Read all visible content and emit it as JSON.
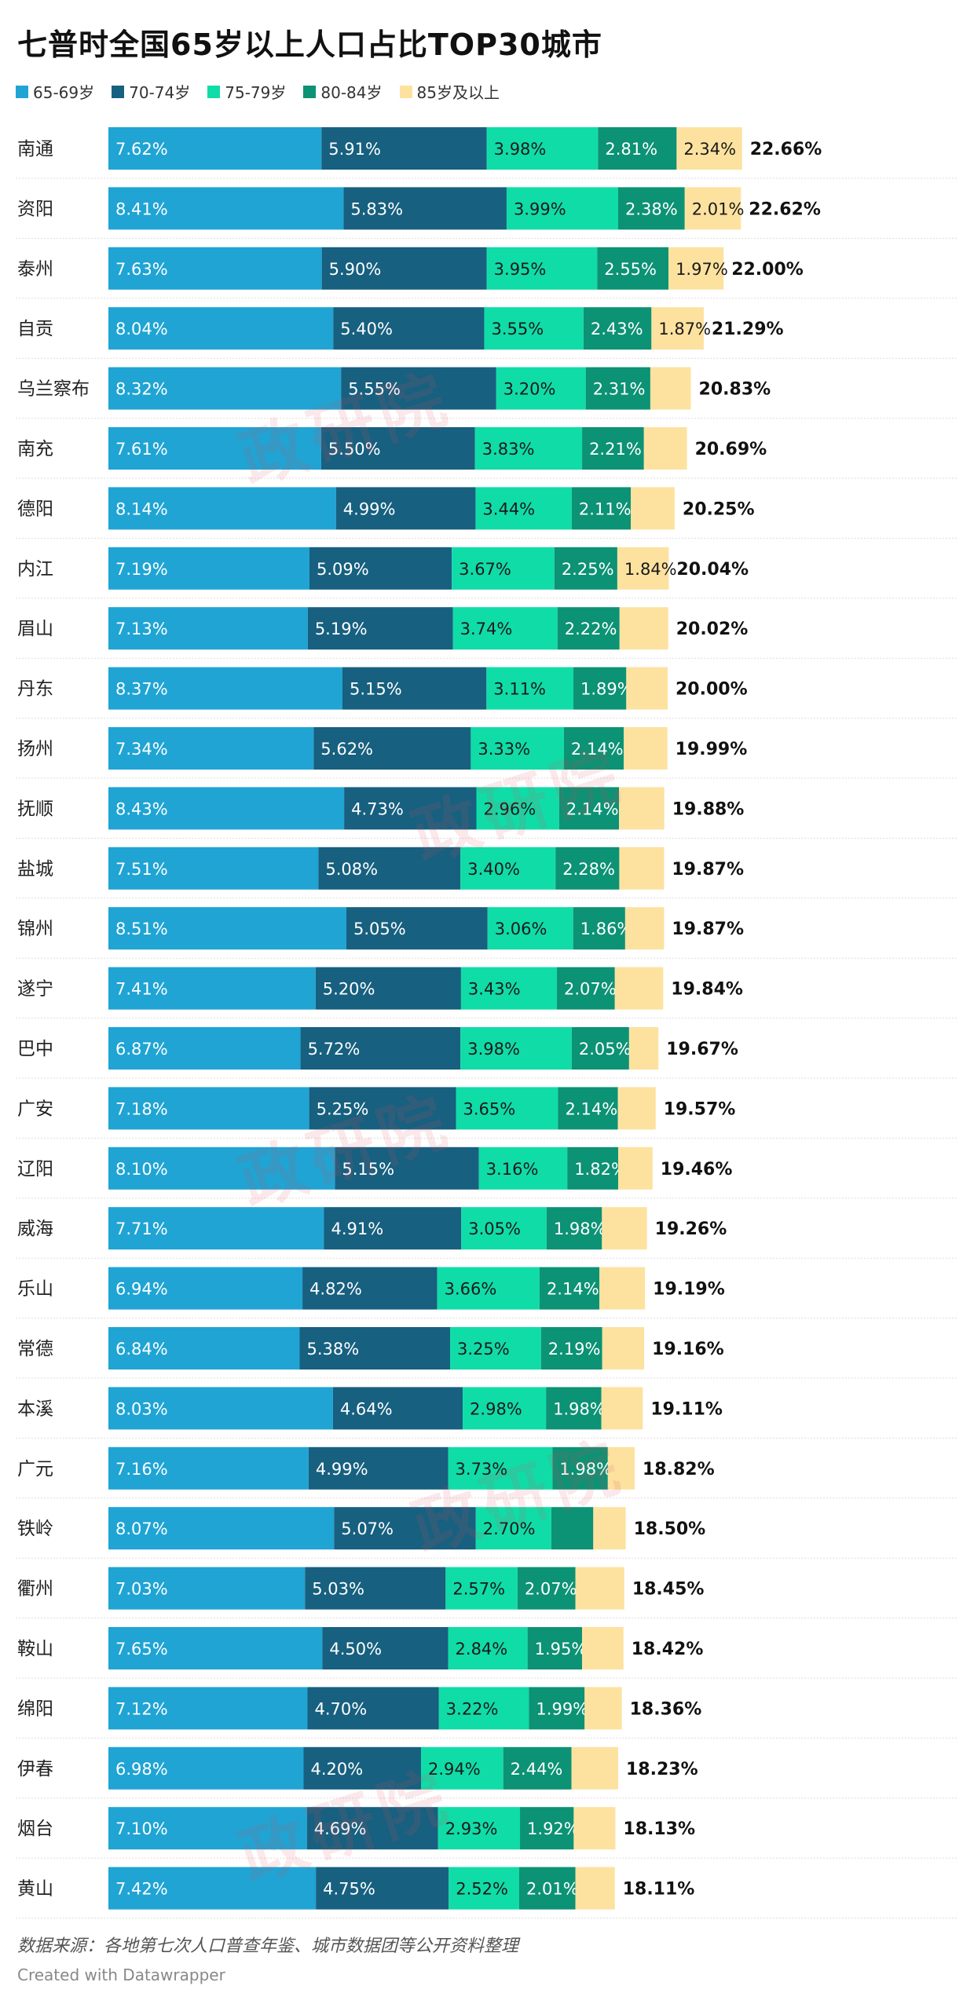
{
  "title": "七普时全国65岁以上人口占比TOP30城市",
  "watermark_text": "政研院",
  "footer": {
    "source": "数据来源：各地第七次人口普查年鉴、城市数据团等公开资料整理",
    "credit": "Created with Datawrapper"
  },
  "colors": {
    "s1": "#1fa4d4",
    "s2": "#17607f",
    "s3": "#10dca8",
    "s4": "#0c9274",
    "s5": "#fde29f"
  },
  "chart_data": {
    "type": "bar",
    "orientation": "horizontal-stacked",
    "title": "七普时全国65岁以上人口占比TOP30城市",
    "categories": [
      "南通",
      "资阳",
      "泰州",
      "自贡",
      "乌兰察布",
      "南充",
      "德阳",
      "内江",
      "眉山",
      "丹东",
      "扬州",
      "抚顺",
      "盐城",
      "锦州",
      "遂宁",
      "巴中",
      "广安",
      "辽阳",
      "威海",
      "乐山",
      "常德",
      "本溪",
      "广元",
      "铁岭",
      "衢州",
      "鞍山",
      "绵阳",
      "伊春",
      "烟台",
      "黄山"
    ],
    "series": [
      {
        "name": "65-69岁",
        "values": [
          7.62,
          8.41,
          7.63,
          8.04,
          8.32,
          7.61,
          8.14,
          7.19,
          7.13,
          8.37,
          7.34,
          8.43,
          7.51,
          8.51,
          7.41,
          6.87,
          7.18,
          8.1,
          7.71,
          6.94,
          6.84,
          8.03,
          7.16,
          8.07,
          7.03,
          7.65,
          7.12,
          6.98,
          7.1,
          7.42
        ]
      },
      {
        "name": "70-74岁",
        "values": [
          5.91,
          5.83,
          5.9,
          5.4,
          5.55,
          5.5,
          4.99,
          5.09,
          5.19,
          5.15,
          5.62,
          4.73,
          5.08,
          5.05,
          5.2,
          5.72,
          5.25,
          5.15,
          4.91,
          4.82,
          5.38,
          4.64,
          4.99,
          5.07,
          5.03,
          4.5,
          4.7,
          4.2,
          4.69,
          4.75
        ]
      },
      {
        "name": "75-79岁",
        "values": [
          3.98,
          3.99,
          3.95,
          3.55,
          3.2,
          3.83,
          3.44,
          3.67,
          3.74,
          3.11,
          3.33,
          2.96,
          3.4,
          3.06,
          3.43,
          3.98,
          3.65,
          3.16,
          3.05,
          3.66,
          3.25,
          2.98,
          3.73,
          2.7,
          2.57,
          2.84,
          3.22,
          2.94,
          2.93,
          2.52
        ]
      },
      {
        "name": "80-84岁",
        "values": [
          2.81,
          2.38,
          2.55,
          2.43,
          2.31,
          2.21,
          2.11,
          2.25,
          2.22,
          1.89,
          2.14,
          2.14,
          2.28,
          1.86,
          2.07,
          2.05,
          2.14,
          1.82,
          1.98,
          2.14,
          2.19,
          1.98,
          1.98,
          1.5,
          2.07,
          1.95,
          1.99,
          2.44,
          1.92,
          2.01
        ]
      },
      {
        "name": "85岁及以上",
        "values": [
          2.34,
          2.01,
          1.97,
          1.87,
          1.45,
          1.54,
          1.57,
          1.84,
          1.74,
          1.48,
          1.56,
          1.62,
          1.6,
          1.39,
          1.73,
          1.05,
          1.35,
          1.23,
          1.61,
          1.63,
          1.5,
          1.48,
          0.96,
          1.16,
          1.75,
          1.48,
          1.33,
          1.67,
          1.49,
          1.41
        ]
      }
    ],
    "label_hidden": [
      [],
      [],
      [],
      [],
      [
        4
      ],
      [
        4
      ],
      [
        4
      ],
      [],
      [
        4
      ],
      [
        4
      ],
      [
        4
      ],
      [
        4
      ],
      [
        4
      ],
      [
        4
      ],
      [
        4
      ],
      [
        4
      ],
      [
        4
      ],
      [
        4
      ],
      [
        4
      ],
      [
        4
      ],
      [
        4
      ],
      [
        4
      ],
      [
        4
      ],
      [
        3,
        4
      ],
      [
        4
      ],
      [
        4
      ],
      [
        4
      ],
      [
        4
      ],
      [
        4
      ],
      [
        4
      ]
    ],
    "totals": [
      "22.66%",
      "22.62%",
      "22.00%",
      "21.29%",
      "20.83%",
      "20.69%",
      "20.25%",
      "20.04%",
      "20.02%",
      "20.00%",
      "19.99%",
      "19.88%",
      "19.87%",
      "19.87%",
      "19.84%",
      "19.67%",
      "19.57%",
      "19.46%",
      "19.26%",
      "19.19%",
      "19.16%",
      "19.11%",
      "18.82%",
      "18.50%",
      "18.45%",
      "18.42%",
      "18.36%",
      "18.23%",
      "18.13%",
      "18.11%"
    ],
    "value_suffix": "%",
    "xlim": [
      0,
      23
    ]
  }
}
